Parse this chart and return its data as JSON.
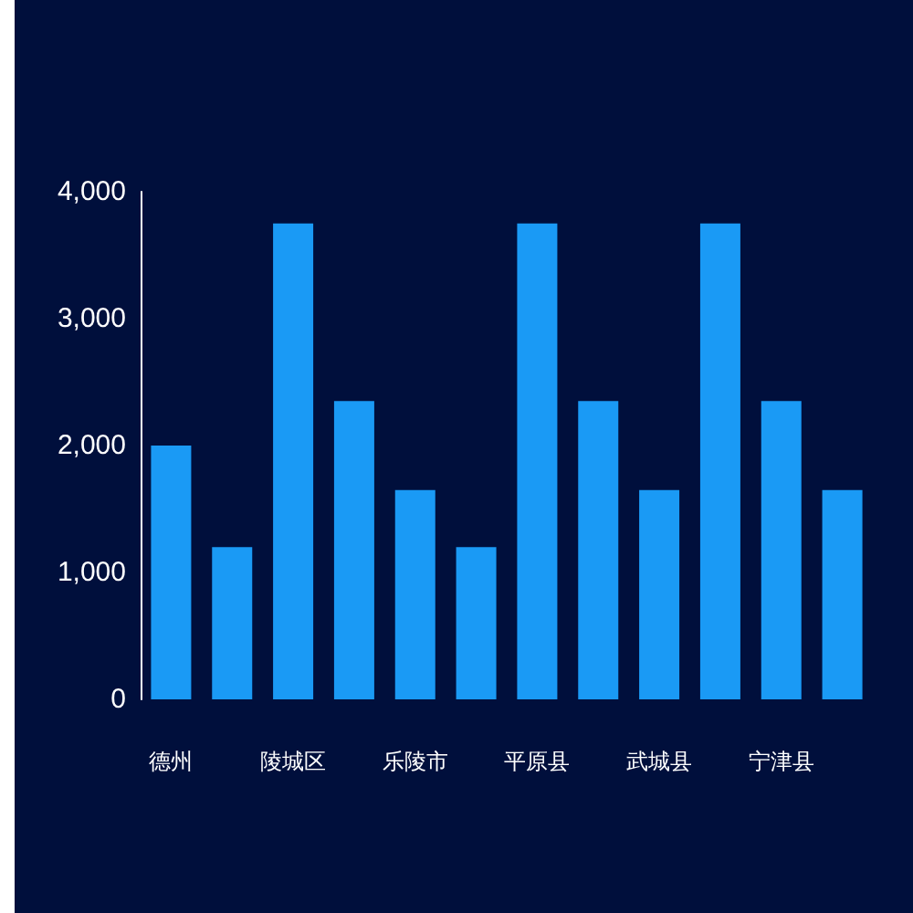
{
  "chart_data": {
    "type": "bar",
    "categories": [
      "德州",
      null,
      "陵城区",
      null,
      "乐陵市",
      null,
      "平原县",
      null,
      "武城县",
      null,
      "宁津县",
      null
    ],
    "values": [
      2000,
      1200,
      3750,
      2350,
      1650,
      1200,
      3750,
      2350,
      1650,
      3750,
      2350,
      1650
    ],
    "color": "#1a9af5",
    "ylim": [
      0,
      4000
    ],
    "yticks": [
      0,
      {
        "value": 1000,
        "label": "1,000"
      },
      {
        "value": 2000,
        "label": "2,000"
      },
      {
        "value": 3000,
        "label": "3,000"
      },
      {
        "value": 4000,
        "label": "4,000"
      }
    ],
    "grid": false
  }
}
